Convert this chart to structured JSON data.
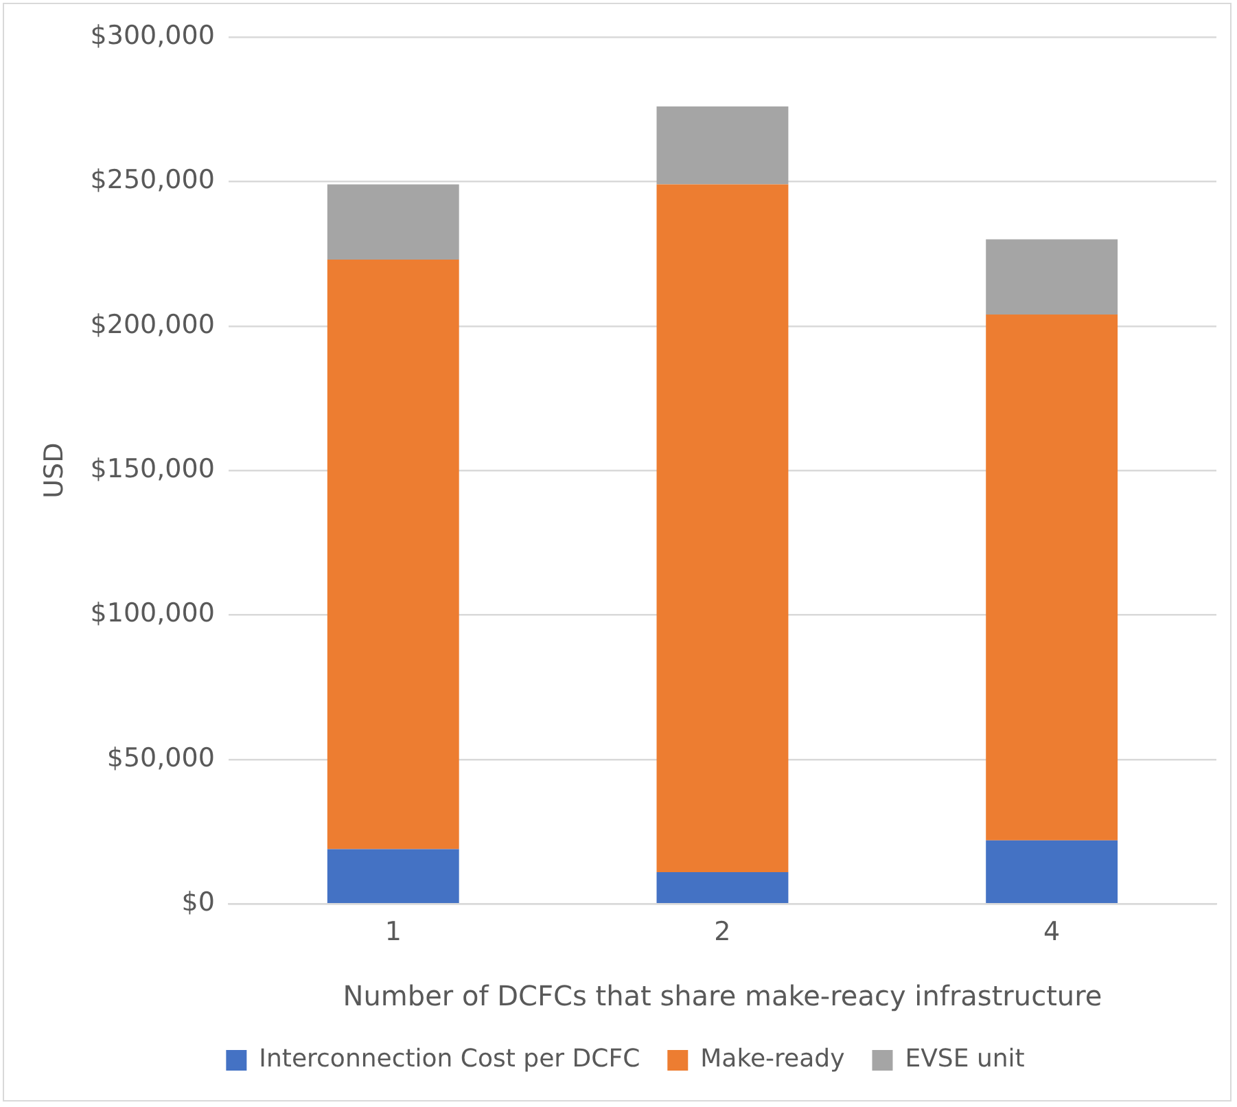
{
  "chart_data": {
    "type": "bar",
    "stacked": true,
    "xlabel": "Number of DCFCs that share make-reacy infrastructure",
    "ylabel": "USD",
    "categories": [
      "1",
      "2",
      "4"
    ],
    "series": [
      {
        "name": "Interconnection Cost per DCFC",
        "color": "#4472c4",
        "values": [
          19000,
          11000,
          22000
        ]
      },
      {
        "name": "Make-ready",
        "color": "#ed7d31",
        "values": [
          204000,
          238000,
          182000
        ]
      },
      {
        "name": "EVSE unit",
        "color": "#a5a5a5",
        "values": [
          26000,
          27000,
          26000
        ]
      }
    ],
    "ylim": [
      0,
      300000
    ],
    "yticks": [
      {
        "value": 0,
        "label": "$0"
      },
      {
        "value": 50000,
        "label": "$50,000"
      },
      {
        "value": 100000,
        "label": "$100,000"
      },
      {
        "value": 150000,
        "label": "$150,000"
      },
      {
        "value": 200000,
        "label": "$200,000"
      },
      {
        "value": 250000,
        "label": "$250,000"
      },
      {
        "value": 300000,
        "label": "$300,000"
      }
    ],
    "grid": "y",
    "legend": "bottom"
  }
}
